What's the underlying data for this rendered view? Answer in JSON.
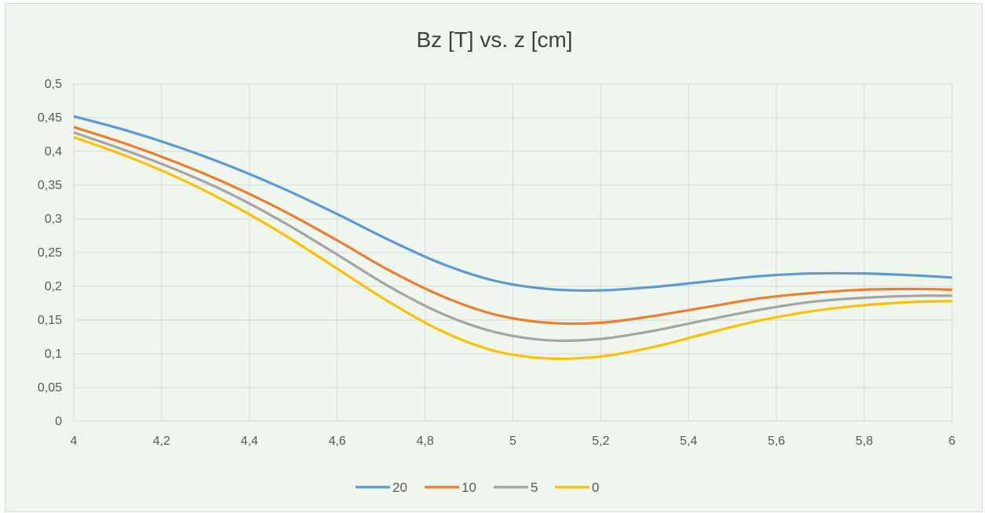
{
  "colors": {
    "background": "#eef6ee",
    "grid": "#d9d9d9",
    "series_20": "#5b9bd5",
    "series_10": "#ed7d31",
    "series_5": "#a5a5a5",
    "series_0": "#ffc000"
  },
  "chart_data": {
    "type": "line",
    "title": "Bz [T] vs. z [cm]",
    "xlabel": "",
    "ylabel": "",
    "xlim": [
      4,
      6
    ],
    "ylim": [
      0,
      0.5
    ],
    "grid": true,
    "legend_position": "bottom",
    "x_ticks": [
      "4",
      "4,2",
      "4,4",
      "4,6",
      "4,8",
      "5",
      "5,2",
      "5,4",
      "5,6",
      "5,8",
      "6"
    ],
    "y_ticks": [
      "0",
      "0,05",
      "0,1",
      "0,15",
      "0,2",
      "0,25",
      "0,3",
      "0,35",
      "0,4",
      "0,45",
      "0,5"
    ],
    "x": [
      4.0,
      4.12,
      4.24,
      4.36,
      4.48,
      4.6,
      4.72,
      4.84,
      4.96,
      5.08,
      5.2,
      5.32,
      5.44,
      5.56,
      5.68,
      5.8,
      5.92,
      6.0
    ],
    "series": [
      {
        "name": "20",
        "color": "#5b9bd5",
        "values": [
          0.452,
          0.431,
          0.406,
          0.377,
          0.344,
          0.307,
          0.268,
          0.233,
          0.208,
          0.196,
          0.194,
          0.199,
          0.207,
          0.215,
          0.219,
          0.219,
          0.216,
          0.213
        ]
      },
      {
        "name": "10",
        "color": "#ed7d31",
        "values": [
          0.436,
          0.411,
          0.382,
          0.349,
          0.311,
          0.268,
          0.223,
          0.185,
          0.158,
          0.146,
          0.146,
          0.156,
          0.169,
          0.182,
          0.19,
          0.195,
          0.196,
          0.195
        ]
      },
      {
        "name": "5",
        "color": "#a5a5a5",
        "values": [
          0.428,
          0.401,
          0.371,
          0.336,
          0.294,
          0.247,
          0.199,
          0.159,
          0.132,
          0.12,
          0.122,
          0.134,
          0.15,
          0.165,
          0.177,
          0.183,
          0.186,
          0.186
        ]
      },
      {
        "name": "0",
        "color": "#ffc000",
        "values": [
          0.421,
          0.393,
          0.36,
          0.321,
          0.276,
          0.226,
          0.176,
          0.133,
          0.104,
          0.093,
          0.096,
          0.11,
          0.13,
          0.149,
          0.163,
          0.172,
          0.177,
          0.178
        ]
      }
    ]
  }
}
